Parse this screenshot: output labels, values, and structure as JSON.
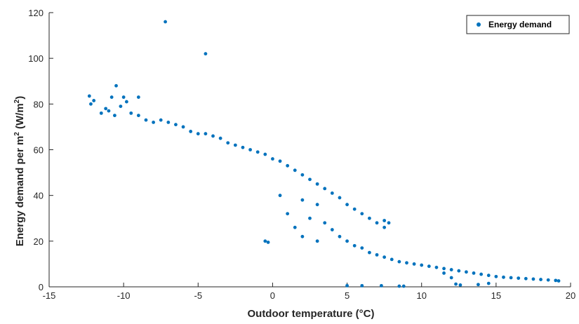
{
  "chart_data": {
    "type": "scatter",
    "xlabel": "Outdoor temperature (°C)",
    "ylabel_parts": [
      "Energy demand per m",
      "2",
      " (W/m",
      "2",
      ")"
    ],
    "xlim": [
      -15,
      20
    ],
    "ylim": [
      0,
      120
    ],
    "xticks": [
      -15,
      -10,
      -5,
      0,
      5,
      10,
      15,
      20
    ],
    "yticks": [
      0,
      20,
      40,
      60,
      80,
      100,
      120
    ],
    "grid": false,
    "legend_position": "top-right",
    "series": [
      {
        "name": "Energy demand",
        "color": "#0072BD",
        "points": [
          [
            -7.2,
            116
          ],
          [
            -4.5,
            102
          ],
          [
            -12.3,
            83.5
          ],
          [
            -12.0,
            81.5
          ],
          [
            -12.2,
            80
          ],
          [
            -11.2,
            78
          ],
          [
            -10.5,
            88
          ],
          [
            -10.8,
            83
          ],
          [
            -10.0,
            83
          ],
          [
            -9.0,
            83
          ],
          [
            -11.5,
            76
          ],
          [
            -11.0,
            77
          ],
          [
            -10.6,
            75
          ],
          [
            -10.2,
            79
          ],
          [
            -9.8,
            81
          ],
          [
            -9.5,
            76
          ],
          [
            -9.0,
            75
          ],
          [
            -8.5,
            73
          ],
          [
            -8.0,
            72
          ],
          [
            -7.5,
            73
          ],
          [
            -7.0,
            72
          ],
          [
            -6.5,
            71
          ],
          [
            -6.0,
            70
          ],
          [
            -5.5,
            68
          ],
          [
            -5.0,
            67
          ],
          [
            -4.5,
            67
          ],
          [
            -4.0,
            66
          ],
          [
            -3.5,
            65
          ],
          [
            -3.0,
            63
          ],
          [
            -2.5,
            62
          ],
          [
            -2.0,
            61
          ],
          [
            -1.5,
            60
          ],
          [
            -1.0,
            59
          ],
          [
            -0.5,
            58
          ],
          [
            0.0,
            56
          ],
          [
            0.5,
            55
          ],
          [
            1.0,
            53
          ],
          [
            1.5,
            51
          ],
          [
            2.0,
            49
          ],
          [
            2.5,
            47
          ],
          [
            3.0,
            45
          ],
          [
            3.5,
            43
          ],
          [
            4.0,
            41
          ],
          [
            4.5,
            39
          ],
          [
            5.0,
            36
          ],
          [
            5.5,
            34
          ],
          [
            6.0,
            32
          ],
          [
            6.5,
            30
          ],
          [
            7.0,
            28
          ],
          [
            7.5,
            26
          ],
          [
            2.0,
            38
          ],
          [
            3.0,
            36
          ],
          [
            2.5,
            30
          ],
          [
            3.5,
            28
          ],
          [
            4.0,
            25
          ],
          [
            4.5,
            22
          ],
          [
            5.0,
            20
          ],
          [
            5.5,
            18
          ],
          [
            6.0,
            17
          ],
          [
            3.0,
            20
          ],
          [
            2.0,
            22
          ],
          [
            1.5,
            26
          ],
          [
            1.0,
            32
          ],
          [
            0.5,
            40
          ],
          [
            6.5,
            15
          ],
          [
            7.0,
            14
          ],
          [
            7.5,
            13
          ],
          [
            8.0,
            12
          ],
          [
            8.5,
            11
          ],
          [
            9.0,
            10.5
          ],
          [
            9.5,
            10
          ],
          [
            10.0,
            9.5
          ],
          [
            10.5,
            9
          ],
          [
            11.0,
            8.5
          ],
          [
            11.5,
            8
          ],
          [
            12.0,
            7.5
          ],
          [
            12.5,
            7
          ],
          [
            13.0,
            6.5
          ],
          [
            13.5,
            6
          ],
          [
            14.0,
            5.5
          ],
          [
            14.5,
            5
          ],
          [
            15.0,
            4.5
          ],
          [
            15.5,
            4.2
          ],
          [
            16.0,
            4
          ],
          [
            16.5,
            3.8
          ],
          [
            17.0,
            3.6
          ],
          [
            17.5,
            3.4
          ],
          [
            18.0,
            3.2
          ],
          [
            18.5,
            3.0
          ],
          [
            19.0,
            2.8
          ],
          [
            19.2,
            2.6
          ],
          [
            -0.3,
            19.5
          ],
          [
            -0.5,
            20
          ],
          [
            7.5,
            29
          ],
          [
            7.8,
            28
          ],
          [
            5.0,
            0.5
          ],
          [
            6.0,
            0.5
          ],
          [
            7.3,
            0.5
          ],
          [
            8.5,
            0.3
          ],
          [
            8.8,
            0.3
          ],
          [
            12.3,
            1.2
          ],
          [
            12.6,
            0.8
          ],
          [
            14.5,
            1.5
          ],
          [
            13.8,
            1.0
          ],
          [
            12.0,
            4
          ],
          [
            11.5,
            6
          ]
        ]
      }
    ]
  }
}
